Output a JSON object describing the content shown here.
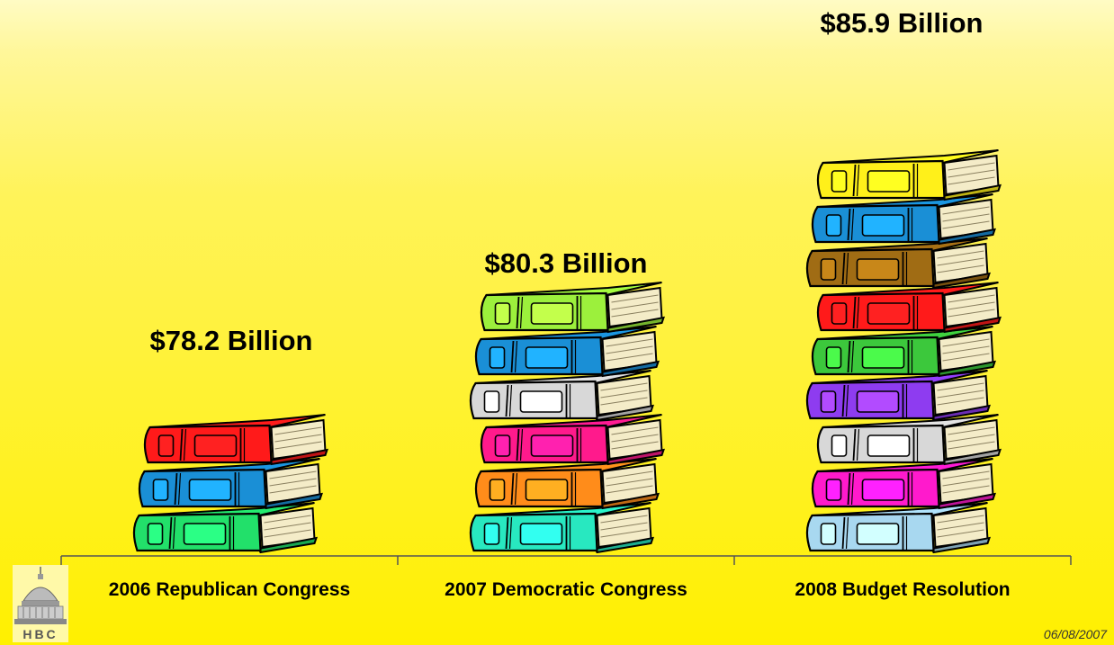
{
  "chart_data": {
    "type": "bar",
    "categories": [
      "2006 Republican Congress",
      "2007 Democratic Congress",
      "2008 Budget Resolution"
    ],
    "values": [
      78.2,
      80.3,
      85.9
    ],
    "value_labels": [
      "$78.2 Billion",
      "$80.3 Billion",
      "$85.9 Billion"
    ],
    "books": [
      [
        "#22e06a",
        "#1a8fd6",
        "#ff1a1a"
      ],
      [
        "#28e8c0",
        "#ff8c1a",
        "#ff1a8c",
        "#d8d8d8",
        "#1a8fd6",
        "#9cf03c"
      ],
      [
        "#a8d8f0",
        "#ff1acc",
        "#d8d8d8",
        "#8e3cf0",
        "#3cc83c",
        "#ff1a1a",
        "#a06c14",
        "#1a8fd6",
        "#fff01a"
      ]
    ]
  },
  "logo": {
    "text": "HBC"
  },
  "date": "06/08/2007"
}
